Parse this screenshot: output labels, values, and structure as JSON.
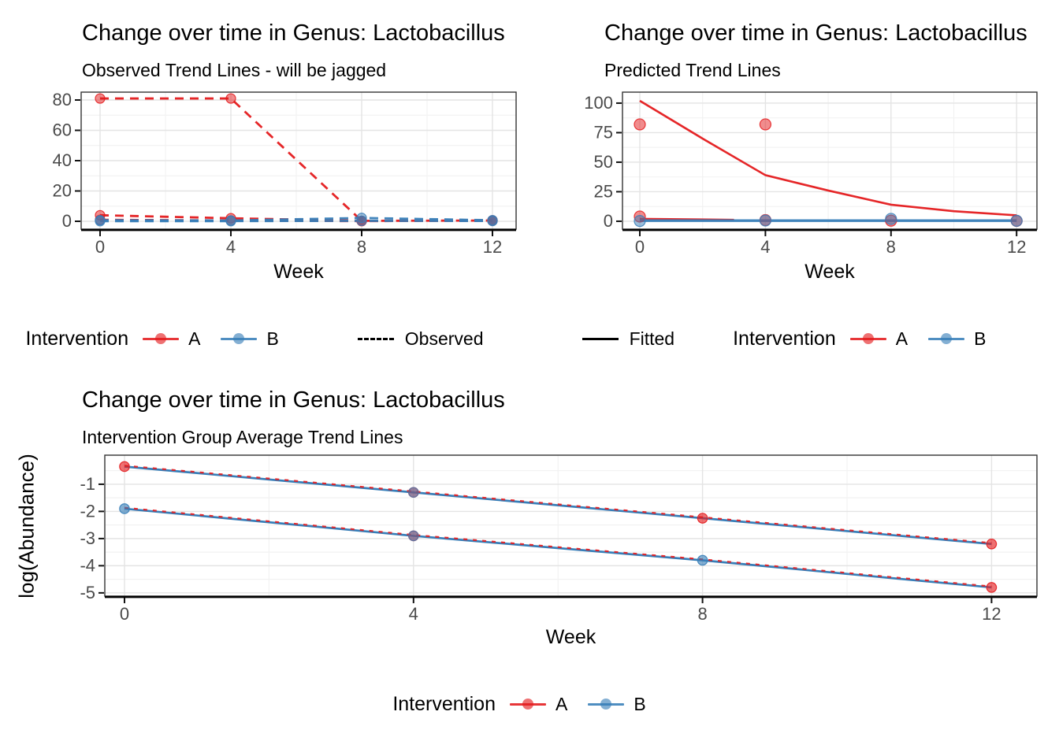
{
  "colors": {
    "A": "#E41A1C",
    "B": "#377EB8",
    "black": "#000000",
    "axis_text": "#4A4A4A",
    "title_text": "#000000",
    "grid_major": "#E4E4E4",
    "grid_minor": "#F2F2F2",
    "panel_border": "#333333",
    "axis_line": "#000000",
    "background": "#FFFFFF"
  },
  "chart_data": [
    {
      "type": "line",
      "title": "Change over time in Genus: Lactobacillus",
      "subtitle": "Observed Trend Lines - will be jagged",
      "xlabel": "Week",
      "ylabel": "",
      "x_ticks": [
        0,
        4,
        8,
        12
      ],
      "y_ticks": [
        0,
        20,
        40,
        60,
        80
      ],
      "xlim": [
        -0.6,
        12.7
      ],
      "ylim": [
        -5.2,
        85.2
      ],
      "x": [
        0,
        4,
        8,
        12
      ],
      "grid": true,
      "legend_position": "bottom",
      "series": [
        {
          "name": "intervention-A-subject-1",
          "group": "A",
          "linetype": "dashed",
          "values": [
            81,
            81,
            0.3,
            0.5
          ]
        },
        {
          "name": "intervention-A-subject-2",
          "group": "A",
          "linetype": "dashed",
          "values": [
            4,
            2,
            0.3,
            0.6
          ]
        },
        {
          "name": "intervention-A-subject-3",
          "group": "A",
          "linetype": "dashed",
          "values": [
            1,
            0.5,
            0.1,
            0.4
          ]
        },
        {
          "name": "intervention-B-subject-1",
          "group": "B",
          "linetype": "dashed",
          "values": [
            0.7,
            0.5,
            2.2,
            0.7
          ]
        },
        {
          "name": "intervention-B-subject-2",
          "group": "B",
          "linetype": "dashed",
          "values": [
            0.1,
            0.1,
            0.3,
            0.2
          ]
        }
      ],
      "legend": {
        "title": "Intervention",
        "items": [
          {
            "label": "A",
            "color_key": "A"
          },
          {
            "label": "B",
            "color_key": "B"
          }
        ],
        "linetype_label": "Observed",
        "linetype_style": "dashed"
      }
    },
    {
      "type": "line",
      "title": "Change over time in Genus: Lactobacillus",
      "subtitle": "Predicted Trend Lines",
      "xlabel": "Week",
      "ylabel": "",
      "x_ticks": [
        0,
        4,
        8,
        12
      ],
      "y_ticks": [
        0,
        25,
        50,
        75,
        100
      ],
      "xlim": [
        -0.6,
        12.7
      ],
      "ylim": [
        -6.7,
        109.3
      ],
      "grid": true,
      "legend_position": "bottom",
      "series": [
        {
          "name": "fitted-A-subject-1",
          "group": "A",
          "linetype": "solid",
          "x": [
            0,
            2,
            4,
            6,
            8,
            10,
            12
          ],
          "values": [
            102,
            70,
            39,
            26,
            14,
            8.5,
            5
          ]
        },
        {
          "name": "fitted-A-subject-2",
          "group": "A",
          "linetype": "solid",
          "x": [
            0,
            3
          ],
          "values": [
            2,
            1.2
          ]
        },
        {
          "name": "fitted-B",
          "group": "B",
          "linetype": "solid",
          "x": [
            0,
            12
          ],
          "values": [
            0.5,
            0.5
          ]
        }
      ],
      "points": [
        {
          "group": "A",
          "x": 0,
          "y": 82
        },
        {
          "group": "A",
          "x": 4,
          "y": 82
        },
        {
          "group": "A",
          "x": 0,
          "y": 4
        },
        {
          "group": "A",
          "x": 4,
          "y": 1
        },
        {
          "group": "A",
          "x": 8,
          "y": 0.5
        },
        {
          "group": "A",
          "x": 12,
          "y": 0.3
        },
        {
          "group": "B",
          "x": 0,
          "y": 0.2
        },
        {
          "group": "B",
          "x": 4,
          "y": 0.6
        },
        {
          "group": "B",
          "x": 8,
          "y": 2
        },
        {
          "group": "B",
          "x": 12,
          "y": 0.4
        }
      ],
      "legend": {
        "title": "Intervention",
        "items": [
          {
            "label": "A",
            "color_key": "A"
          },
          {
            "label": "B",
            "color_key": "B"
          }
        ],
        "linetype_label": "Fitted",
        "linetype_style": "solid"
      }
    },
    {
      "type": "line",
      "title": "Change over time in Genus: Lactobacillus",
      "subtitle": "Intervention Group Average Trend Lines",
      "xlabel": "Week",
      "ylabel": "log(Abundance)",
      "x_ticks": [
        0,
        4,
        8,
        12
      ],
      "y_ticks": [
        -1,
        -2,
        -3,
        -4,
        -5
      ],
      "xlim": [
        -0.6,
        12.7
      ],
      "ylim": [
        -5.12,
        0.07
      ],
      "x": [
        0,
        4,
        8,
        12
      ],
      "grid": true,
      "legend_position": "bottom",
      "series": [
        {
          "name": "average-trend-upper",
          "line_groups": [
            "B",
            "A"
          ],
          "values": [
            -0.35,
            -1.3,
            -2.25,
            -3.2
          ],
          "point_groups": [
            "A",
            "A+B",
            "A",
            "A"
          ]
        },
        {
          "name": "average-trend-lower",
          "line_groups": [
            "B",
            "A"
          ],
          "values": [
            -1.9,
            -2.9,
            -3.8,
            -4.8
          ],
          "point_groups": [
            "B",
            "A+B",
            "B",
            "A"
          ]
        }
      ],
      "legend": {
        "title": "Intervention",
        "items": [
          {
            "label": "A",
            "color_key": "A"
          },
          {
            "label": "B",
            "color_key": "B"
          }
        ]
      }
    }
  ]
}
